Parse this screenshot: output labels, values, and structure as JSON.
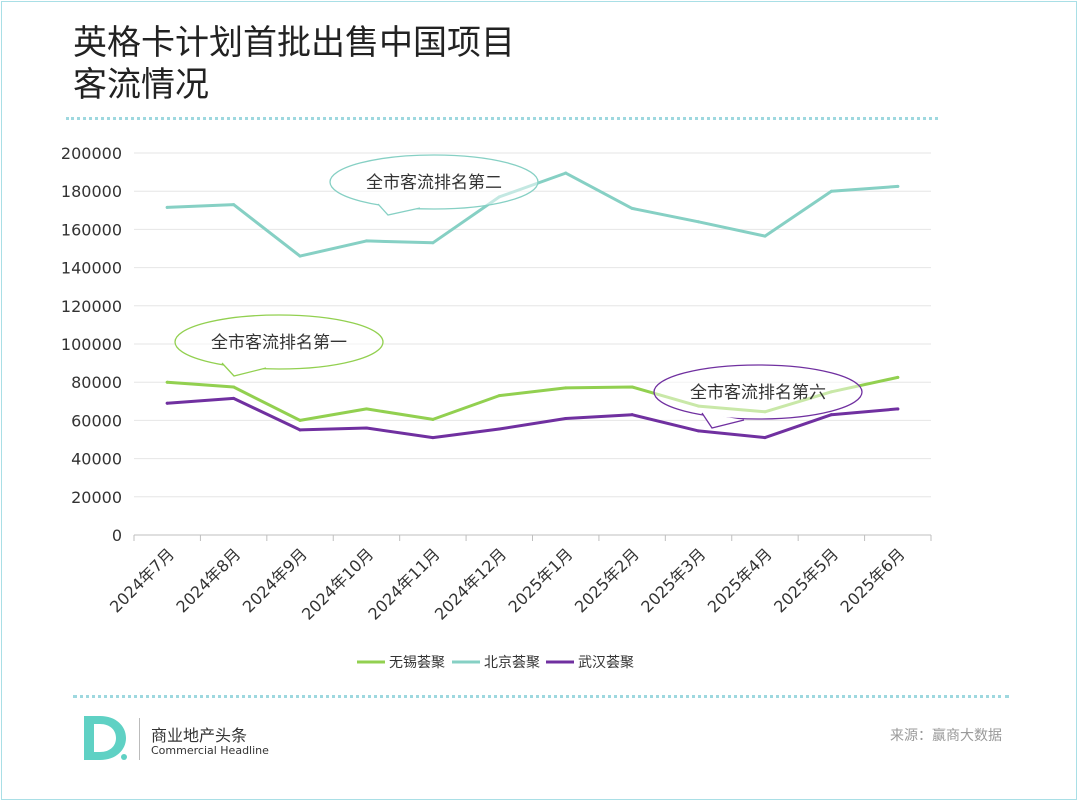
{
  "title": "英格卡计划首批出售中国项目\n客流情况",
  "footer": {
    "brand_cn": "商业地产头条",
    "brand_en": "Commercial Headline",
    "source": "来源：赢商大数据"
  },
  "colors": {
    "wuxi": "#92d050",
    "beijing": "#86d0c4",
    "wuhan": "#7030a0",
    "logo": "#5fd1c4",
    "divider": "#9ed8df"
  },
  "chart_data": {
    "type": "line",
    "categories": [
      "2024年7月",
      "2024年8月",
      "2024年9月",
      "2024年10月",
      "2024年11月",
      "2024年12月",
      "2025年1月",
      "2025年2月",
      "2025年3月",
      "2025年4月",
      "2025年5月",
      "2025年6月"
    ],
    "ylim": [
      0,
      200000
    ],
    "yticks": [
      0,
      20000,
      40000,
      60000,
      80000,
      100000,
      120000,
      140000,
      160000,
      180000,
      200000
    ],
    "grid": true,
    "legend_position": "bottom",
    "series": [
      {
        "name": "无锡荟聚",
        "color": "#92d050",
        "values": [
          80000,
          77500,
          60000,
          66000,
          60500,
          73000,
          77000,
          77500,
          67500,
          64500,
          75000,
          82500
        ]
      },
      {
        "name": "北京荟聚",
        "color": "#86d0c4",
        "values": [
          171500,
          173000,
          146000,
          154000,
          153000,
          177000,
          189500,
          171000,
          164000,
          156500,
          180000,
          182500
        ]
      },
      {
        "name": "武汉荟聚",
        "color": "#7030a0",
        "values": [
          69000,
          71500,
          55000,
          56000,
          51000,
          55500,
          61000,
          63000,
          54500,
          51000,
          63000,
          66000
        ]
      }
    ],
    "annotations": [
      {
        "text": "全市客流排名第二",
        "series": "北京荟聚",
        "color": "#86d0c4"
      },
      {
        "text": "全市客流排名第一",
        "series": "无锡荟聚",
        "color": "#92d050"
      },
      {
        "text": "全市客流排名第六",
        "series": "武汉荟聚",
        "color": "#7030a0"
      }
    ]
  }
}
